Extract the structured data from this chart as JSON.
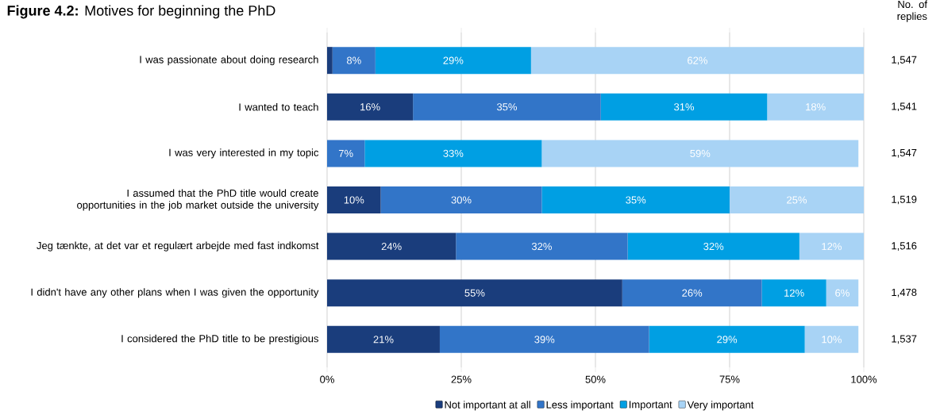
{
  "chart_data": {
    "type": "bar",
    "orientation": "horizontal",
    "stacked": true,
    "title": "**Figure 4.2:** Motives for beginning the PhD",
    "categories": [
      "I was passionate about doing research",
      "I wanted to teach",
      "I was very interested in my topic",
      "I assumed that the PhD title would create opportunities in the job market outside the university",
      "Jeg tænkte, at det var et regulært arbejde med fast indkomst",
      "I didn't have any other plans when I was given the opportunity",
      "I considered the PhD title to be prestigious"
    ],
    "series": [
      {
        "name": "Not important at all",
        "color": "#1a3d7c",
        "values": [
          1,
          16,
          0,
          10,
          24,
          55,
          21
        ],
        "value_labels": [
          null,
          "16%",
          null,
          "10%",
          "24%",
          "55%",
          "21%"
        ]
      },
      {
        "name": "Less important",
        "color": "#3275c8",
        "values": [
          8,
          35,
          7,
          30,
          32,
          26,
          39
        ],
        "value_labels": [
          "8%",
          "35%",
          "7%",
          "30%",
          "32%",
          "26%",
          "39%"
        ]
      },
      {
        "name": "Important",
        "color": "#009fe3",
        "values": [
          29,
          31,
          33,
          35,
          32,
          12,
          29
        ],
        "value_labels": [
          "29%",
          "31%",
          "33%",
          "35%",
          "32%",
          "12%",
          "29%"
        ]
      },
      {
        "name": "Very important",
        "color": "#a8d3f5",
        "values": [
          62,
          18,
          59,
          25,
          12,
          6,
          10
        ],
        "value_labels": [
          "62%",
          "18%",
          "59%",
          "25%",
          "12%",
          "6%",
          "10%"
        ]
      }
    ],
    "xlim": [
      0,
      100
    ],
    "xticks": [
      {
        "value": 0,
        "label": "0%"
      },
      {
        "value": 25,
        "label": "25%"
      },
      {
        "value": 50,
        "label": "50%"
      },
      {
        "value": 75,
        "label": "75%"
      },
      {
        "value": 100,
        "label": "100%"
      }
    ],
    "grid": "x",
    "legend": "bottom",
    "annotations": [
      "No. of replies",
      "1,547",
      "1,541",
      "1,547",
      "1,519",
      "1,516",
      "1,478",
      "1,537"
    ]
  }
}
